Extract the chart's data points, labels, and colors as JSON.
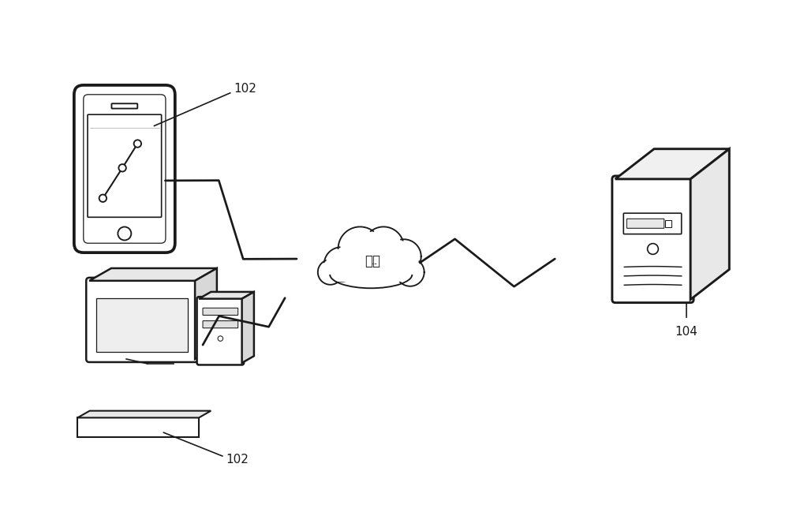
{
  "bg_color": "#ffffff",
  "line_color": "#1a1a1a",
  "label_102_phone": "102",
  "label_102_pc": "102",
  "label_104": "104",
  "label_cloud": "网络",
  "figsize": [
    10.0,
    6.73
  ],
  "dpi": 100
}
